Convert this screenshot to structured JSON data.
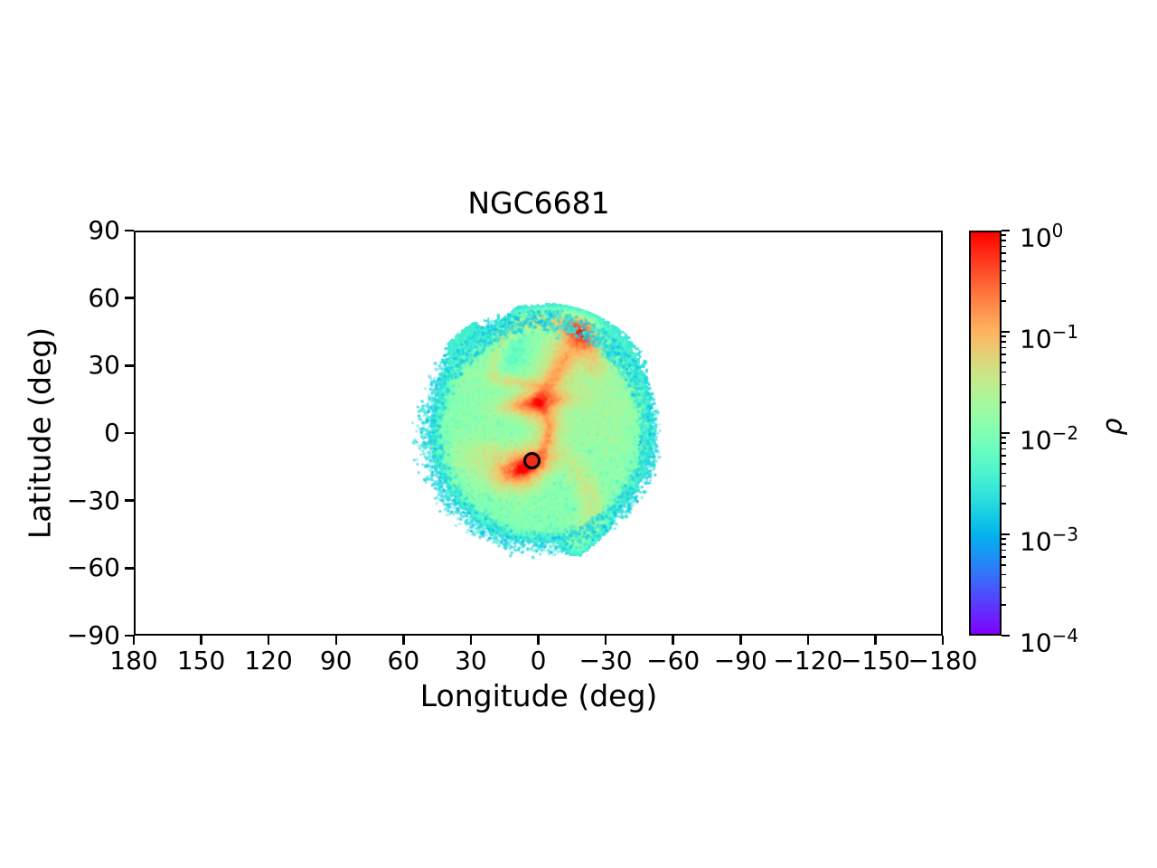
{
  "axes": {
    "xlabel": "Longitude (deg)",
    "ylabel": "Latitude (deg)",
    "x_tick_labels": [
      "180",
      "150",
      "120",
      "90",
      "60",
      "30",
      "0",
      "−30",
      "−60",
      "−90",
      "−120",
      "−150",
      "−180"
    ],
    "y_tick_labels": [
      "90",
      "60",
      "30",
      "0",
      "−30",
      "−60",
      "−90"
    ]
  },
  "colorbar": {
    "label": "ρ",
    "scale": "log",
    "colormap": "rainbow",
    "major_tick_exponents": [
      0,
      -1,
      -2,
      -3,
      -4
    ],
    "major_tick_labels": [
      {
        "base": "10",
        "exp": "0"
      },
      {
        "base": "10",
        "exp": "−1"
      },
      {
        "base": "10",
        "exp": "−2"
      },
      {
        "base": "10",
        "exp": "−3"
      },
      {
        "base": "10",
        "exp": "−4"
      }
    ]
  },
  "chart_data": {
    "type": "scatter",
    "title": "NGC6681",
    "xlabel": "Longitude (deg)",
    "ylabel": "Latitude (deg)",
    "xlim": [
      180,
      -180
    ],
    "ylim": [
      -90,
      90
    ],
    "x_ticks": [
      180,
      150,
      120,
      90,
      60,
      30,
      0,
      -30,
      -60,
      -90,
      -120,
      -150,
      -180
    ],
    "y_ticks": [
      90,
      60,
      30,
      0,
      -30,
      -60,
      -90
    ],
    "grid": false,
    "colorbar": {
      "label": "ρ",
      "scale": "log",
      "limits": [
        0.0001,
        1
      ],
      "colormap": "rainbow",
      "position": "right"
    },
    "cluster_marker": {
      "lon": 2.5,
      "lat": -12.5,
      "style": "black-ring-red-fill"
    },
    "density_cloud": {
      "center": [
        -1.5,
        0
      ],
      "radius": 52,
      "base_density": 0.0115,
      "edge_r": 46.5,
      "edge_softness": 1.9,
      "gaussians": [
        [
          -3,
          32,
          22,
          14,
          0,
          0.013
        ],
        [
          26,
          36,
          9,
          8,
          0,
          0.005
        ],
        [
          -28,
          6,
          12,
          16,
          0,
          0.006
        ],
        [
          15,
          -15,
          10,
          5.5,
          28,
          0.018
        ],
        [
          26,
          -11,
          8,
          6,
          0,
          0.01
        ],
        [
          -19,
          44.5,
          3.5,
          1.6,
          37,
          0.4
        ],
        [
          -18.5,
          43.5,
          6,
          3,
          37,
          0.1
        ],
        [
          0,
          13.4,
          1.7,
          1.0,
          -8,
          0.75
        ],
        [
          0.3,
          13.6,
          5.5,
          1.8,
          -8,
          0.22
        ],
        [
          0,
          13.5,
          9,
          2.8,
          -8,
          0.08
        ],
        [
          5.2,
          -15.2,
          3.8,
          1.5,
          -23,
          0.55
        ],
        [
          5.5,
          -14.8,
          7,
          3,
          -20,
          0.14
        ],
        [
          3.0,
          -13.2,
          1.6,
          1.2,
          -20,
          0.35
        ],
        [
          11,
          34.5,
          11,
          8.5,
          -5,
          -0.017
        ]
      ],
      "streams": [
        {
          "pts": [
            [
              -19,
              44.5
            ],
            [
              -14,
              37
            ],
            [
              -9,
              28
            ],
            [
              -4,
              20
            ],
            [
              0,
              13.5
            ],
            [
              -3.5,
              8.5
            ],
            [
              -5.3,
              3
            ],
            [
              -4.3,
              -3
            ],
            [
              -1.8,
              -8.5
            ],
            [
              1.2,
              -11.5
            ],
            [
              4.5,
              -14
            ],
            [
              8,
              -15.8
            ],
            [
              12.5,
              -16.8
            ]
          ],
          "w": [
            3,
            2.2,
            2,
            1.8,
            1.6,
            1.5,
            1.5,
            1.5,
            1.5,
            1.6,
            2,
            2.4,
            2.8
          ],
          "amp": [
            0.22,
            0.05,
            0.06,
            0.08,
            0.4,
            0.1,
            0.11,
            0.12,
            0.13,
            0.22,
            0.45,
            0.35,
            0.08
          ]
        },
        {
          "pts": [
            [
              -16,
              40
            ],
            [
              -10,
              30
            ],
            [
              -5,
              21
            ],
            [
              -0.5,
              13.5
            ],
            [
              -5,
              3
            ],
            [
              -3,
              -6
            ],
            [
              3,
              -12
            ],
            [
              7,
              -15.5
            ],
            [
              13,
              -17
            ]
          ],
          "w": [
            5,
            5,
            4.5,
            4.5,
            5,
            5,
            5,
            5,
            6
          ],
          "amp": [
            0.05,
            0.04,
            0.05,
            0.08,
            0.03,
            0.035,
            0.06,
            0.09,
            0.03
          ]
        },
        {
          "pts": [
            [
              15,
              44
            ],
            [
              8,
              48.5
            ],
            [
              0,
              50
            ],
            [
              -8,
              49.5
            ],
            [
              -15,
              46.5
            ],
            [
              -20,
              42
            ],
            [
              -23.5,
              36
            ],
            [
              -25,
              30
            ]
          ],
          "w": [
            2.5,
            2.5,
            2.5,
            2.5,
            2.5,
            2.5,
            2.7,
            3
          ],
          "amp": [
            0.02,
            0.03,
            0.035,
            0.04,
            0.06,
            0.065,
            0.05,
            0.03
          ]
        },
        {
          "pts": [
            [
              20,
              24.5
            ],
            [
              13,
              23
            ],
            [
              5,
              21.8
            ],
            [
              -3,
              20.5
            ]
          ],
          "w": [
            1.7,
            1.7,
            1.7,
            1.9
          ],
          "amp": [
            0.02,
            0.03,
            0.035,
            0.04
          ]
        },
        {
          "pts": [
            [
              16,
              42
            ],
            [
              19,
              34
            ],
            [
              20,
              27
            ]
          ],
          "w": [
            2,
            2,
            2
          ],
          "amp": [
            0.015,
            0.018,
            0.015
          ]
        },
        {
          "pts": [
            [
              -13,
              -11
            ],
            [
              -19,
              -19
            ],
            [
              -24,
              -29
            ],
            [
              -24,
              -39
            ],
            [
              -17,
              -47
            ]
          ],
          "w": [
            4,
            3.5,
            3.5,
            4,
            4
          ],
          "amp": [
            0.012,
            0.018,
            0.022,
            0.02,
            0.014
          ]
        }
      ]
    },
    "fringe": {
      "count": 2600,
      "r_start": 43.5,
      "r_spread": 8.5,
      "left_tail": 5.5,
      "bottom_tail": 2.5,
      "t_range": [
        0.26,
        0.4
      ]
    },
    "transition_dots": {
      "count": 350,
      "r_range": [
        42,
        48
      ],
      "t_range": [
        0.34,
        0.48
      ]
    },
    "grain": {
      "count": 700,
      "r_max": 45
    }
  }
}
